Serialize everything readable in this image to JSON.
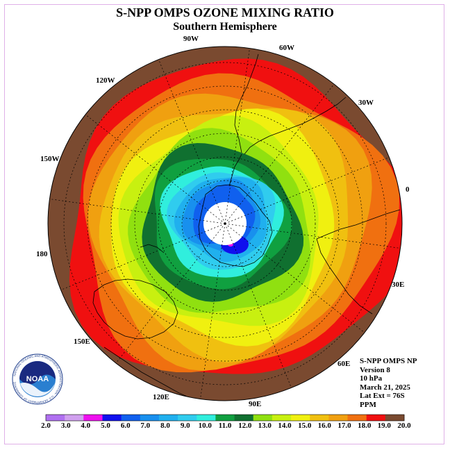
{
  "header": {
    "title": "S-NPP OMPS OZONE MIXING RATIO",
    "subtitle": "Southern Hemisphere"
  },
  "longitude_labels": [
    "90W",
    "60W",
    "30W",
    "0",
    "30E",
    "60E",
    "90E",
    "120E",
    "150E",
    "180",
    "150W",
    "120W"
  ],
  "info": {
    "instrument": "S-NPP OMPS NP",
    "version": "Version 8",
    "level": "10 hPa",
    "date": "March 21, 2025",
    "lat_ext": "Lat Ext = 76S",
    "units": "PPM"
  },
  "logo": {
    "text": "NOAA",
    "ring_text": "NATIONAL OCEANIC AND ATMOSPHERIC ADMINISTRATION · U.S. DEPARTMENT OF COMMERCE"
  },
  "colorbar": {
    "labels": [
      "2.0",
      "3.0",
      "4.0",
      "5.0",
      "6.0",
      "7.0",
      "8.0",
      "9.0",
      "10.0",
      "11.0",
      "12.0",
      "13.0",
      "14.0",
      "15.0",
      "16.0",
      "17.0",
      "18.0",
      "19.0",
      "20.0"
    ],
    "colors": [
      "#b070f0",
      "#d0a0ee",
      "#ee10ee",
      "#1010ee",
      "#1060ee",
      "#1890ee",
      "#20b0ee",
      "#30ccee",
      "#30eedd",
      "#10a040",
      "#107030",
      "#90e010",
      "#c8f010",
      "#f0f010",
      "#f0c010",
      "#f0a010",
      "#f07010",
      "#f01010",
      "#7a4a30"
    ]
  },
  "map": {
    "rings_outer_to_inner": [
      "#7a4a30",
      "#f01010",
      "#f07010",
      "#f0a010",
      "#f0c010",
      "#f0f010",
      "#c8f010",
      "#90e010",
      "#107030",
      "#10a040",
      "#30eedd",
      "#30ccee",
      "#20b0ee",
      "#1890ee",
      "#1060ee"
    ],
    "hole_color": "#ffffff",
    "min_color": "#1010ee",
    "min_center_color": "#ee10ee"
  }
}
